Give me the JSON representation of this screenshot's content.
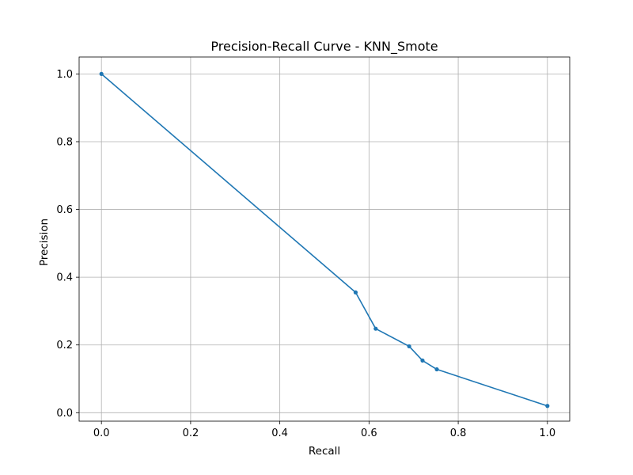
{
  "chart_data": {
    "type": "line",
    "title": "Precision-Recall Curve - KNN_Smote",
    "xlabel": "Recall",
    "ylabel": "Precision",
    "xlim": [
      -0.05,
      1.05
    ],
    "ylim": [
      -0.025,
      1.05
    ],
    "xticks": [
      0.0,
      0.2,
      0.4,
      0.6,
      0.8,
      1.0
    ],
    "xtick_labels": [
      "0.0",
      "0.2",
      "0.4",
      "0.6",
      "0.8",
      "1.0"
    ],
    "yticks": [
      0.0,
      0.2,
      0.4,
      0.6,
      0.8,
      1.0
    ],
    "ytick_labels": [
      "0.0",
      "0.2",
      "0.4",
      "0.6",
      "0.8",
      "1.0"
    ],
    "grid": true,
    "series": [
      {
        "color": "#1f77b4",
        "marker": "circle",
        "x": [
          0.0,
          0.57,
          0.615,
          0.69,
          0.72,
          0.752,
          1.0
        ],
        "y": [
          1.0,
          0.355,
          0.248,
          0.196,
          0.154,
          0.128,
          0.02
        ]
      }
    ]
  }
}
